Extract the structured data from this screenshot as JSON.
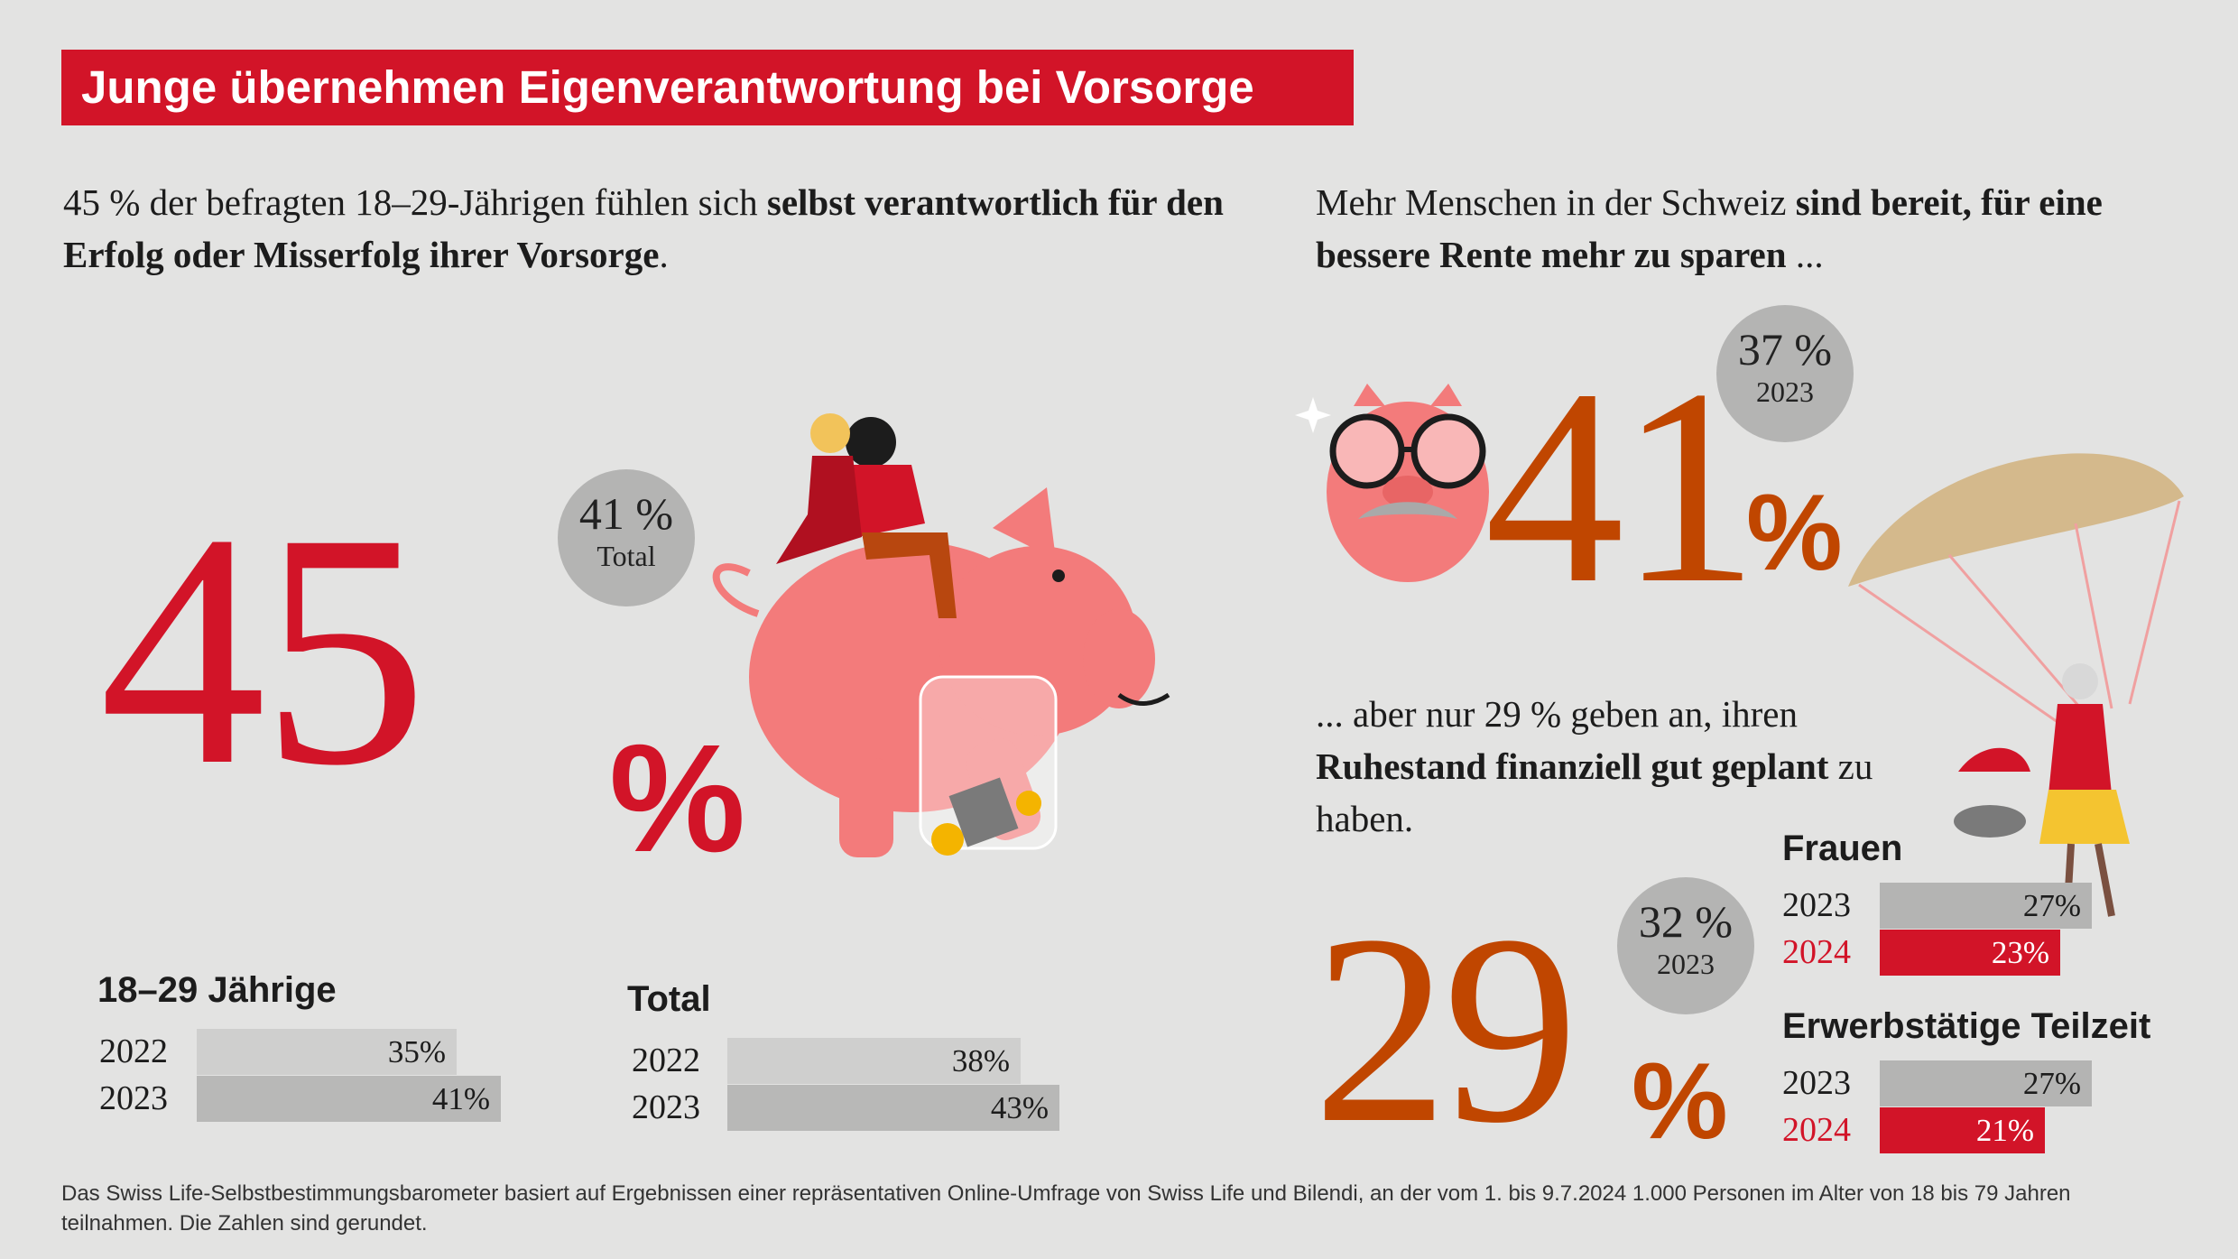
{
  "title": "Junge übernehmen Eigenverantwortung bei Vorsorge",
  "left": {
    "intro_pre": "45 % der befragten 18–29-Jährigen fühlen sich ",
    "intro_bold": "selbst verantwortlich für den Erfolg oder Misserfolg ihrer Vorsorge",
    "intro_post": ".",
    "big_number": "45",
    "big_pct": "%",
    "bubble_value": "41 %",
    "bubble_label": "Total"
  },
  "right_top": {
    "intro_pre": "Mehr Menschen in der Schweiz ",
    "intro_bold": "sind bereit, für eine bessere Rente mehr zu sparen",
    "intro_post": " ...",
    "big_number": "41",
    "big_pct": "%",
    "bubble_value": "37 %",
    "bubble_label": "2023"
  },
  "right_mid": {
    "text_pre": "... aber nur 29 % geben an, ihren ",
    "text_bold": "Ruhestand finanziell gut geplant",
    "text_post": " zu haben.",
    "big_number": "29",
    "big_pct": "%",
    "bubble_value": "32 %",
    "bubble_label": "2023"
  },
  "colors": {
    "red": "#d21428",
    "orange": "#c04600",
    "bar_light": "#cfcfce",
    "bar_dark": "#b8b8b7",
    "bar_grey": "#b4b4b3"
  },
  "chart_data": [
    {
      "type": "bar",
      "title": "18–29 Jährige",
      "categories": [
        "2022",
        "2023"
      ],
      "values": [
        35,
        41
      ],
      "labels": [
        "35%",
        "41%"
      ],
      "xlim": [
        0,
        45
      ]
    },
    {
      "type": "bar",
      "title": "Total",
      "categories": [
        "2022",
        "2023"
      ],
      "values": [
        38,
        43
      ],
      "labels": [
        "38%",
        "43%"
      ],
      "xlim": [
        0,
        45
      ]
    },
    {
      "type": "bar",
      "title": "Frauen",
      "categories": [
        "2023",
        "2024"
      ],
      "values": [
        27,
        23
      ],
      "labels": [
        "27%",
        "23%"
      ],
      "xlim": [
        0,
        27
      ]
    },
    {
      "type": "bar",
      "title": "Erwerbstätige Teilzeit",
      "categories": [
        "2023",
        "2024"
      ],
      "values": [
        27,
        21
      ],
      "labels": [
        "27%",
        "21%"
      ],
      "xlim": [
        0,
        27
      ]
    }
  ],
  "footnote": "Das Swiss Life-Selbstbestimmungsbarometer basiert auf Ergebnissen einer repräsentativen Online-Umfrage von Swiss Life und Bilendi, an der vom 1. bis 9.7.2024 1.000 Personen im Alter von 18 bis 79 Jahren teilnahmen. Die Zahlen sind gerundet."
}
